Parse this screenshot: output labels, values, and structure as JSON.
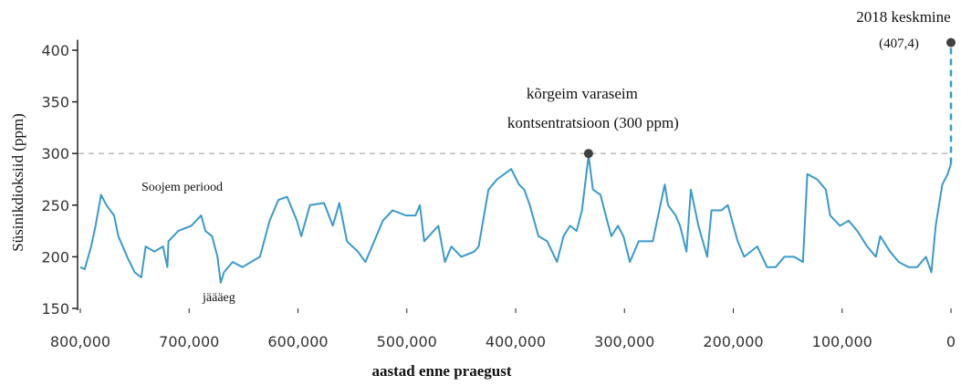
{
  "chart_data": {
    "type": "line",
    "y_label": "Süsinikdioksiid (ppm)",
    "x_label": "aastad enne praegust",
    "xlim": [
      800000,
      0
    ],
    "ylim": [
      150,
      410
    ],
    "xticks": [
      {
        "value": 800000,
        "label": "800,000"
      },
      {
        "value": 700000,
        "label": "700,000"
      },
      {
        "value": 600000,
        "label": "600,000"
      },
      {
        "value": 500000,
        "label": "500,000"
      },
      {
        "value": 400000,
        "label": "400,000"
      },
      {
        "value": 300000,
        "label": "300,000"
      },
      {
        "value": 200000,
        "label": "200,000"
      },
      {
        "value": 100000,
        "label": "100,000"
      },
      0
    ],
    "yticks": [
      150,
      200,
      250,
      300,
      350,
      400
    ],
    "reference_line": 300,
    "series": [
      {
        "color": "#3a9acb",
        "x": [
          800000,
          796000,
          790000,
          786000,
          781000,
          776000,
          769000,
          765000,
          757000,
          750000,
          744000,
          740000,
          732000,
          724000,
          720000,
          719000,
          710000,
          698000,
          689000,
          685000,
          679000,
          674000,
          671000,
          668000,
          660000,
          651000,
          635000,
          626000,
          618000,
          610000,
          601000,
          597000,
          589000,
          576000,
          568000,
          562000,
          555000,
          545000,
          538000,
          532000,
          522000,
          513000,
          501000,
          492000,
          488000,
          484000,
          471000,
          465000,
          459000,
          450000,
          438000,
          434000,
          425000,
          417000,
          404000,
          397000,
          392000,
          387000,
          379000,
          371000,
          362000,
          356000,
          350000,
          344000,
          339000,
          333000,
          329000,
          322000,
          316000,
          312000,
          306000,
          301000,
          295000,
          287000,
          274000,
          270000,
          263000,
          260000,
          253000,
          249000,
          243000,
          239000,
          232000,
          224000,
          220000,
          211000,
          205000,
          196000,
          190000,
          178000,
          169000,
          161000,
          153000,
          144000,
          136000,
          132000,
          123000,
          115000,
          111000,
          102000,
          94000,
          86000,
          77000,
          69000,
          65000,
          56000,
          48000,
          39000,
          31000,
          23000,
          18000,
          14000,
          8000,
          3000,
          0
        ],
        "values": [
          190,
          188,
          210,
          230,
          260,
          250,
          240,
          220,
          200,
          185,
          180,
          210,
          205,
          210,
          190,
          215,
          225,
          230,
          240,
          225,
          220,
          200,
          175,
          185,
          195,
          190,
          200,
          235,
          255,
          258,
          235,
          220,
          250,
          252,
          230,
          252,
          215,
          205,
          195,
          210,
          235,
          245,
          240,
          240,
          250,
          215,
          230,
          195,
          210,
          200,
          205,
          210,
          265,
          275,
          285,
          270,
          265,
          250,
          220,
          215,
          195,
          220,
          230,
          225,
          245,
          298,
          265,
          260,
          235,
          220,
          230,
          220,
          195,
          215,
          215,
          235,
          270,
          250,
          240,
          230,
          205,
          265,
          230,
          200,
          245,
          245,
          250,
          215,
          200,
          210,
          190,
          190,
          200,
          200,
          195,
          280,
          275,
          265,
          240,
          230,
          235,
          225,
          210,
          200,
          220,
          205,
          195,
          190,
          190,
          200,
          185,
          230,
          270,
          280,
          290
        ]
      }
    ],
    "highlights": [
      {
        "x": 333000,
        "y": 300,
        "label": [
          "kõrgeim varaseim",
          "kontsentratsioon (300 ppm)"
        ],
        "color": "#404040"
      },
      {
        "x": 0,
        "y": 407.4,
        "title": "2018 keskmine",
        "value_label": "(407,4)",
        "color": "#404040"
      }
    ],
    "annotations": [
      "Soojem periood",
      "jäääeg"
    ]
  }
}
